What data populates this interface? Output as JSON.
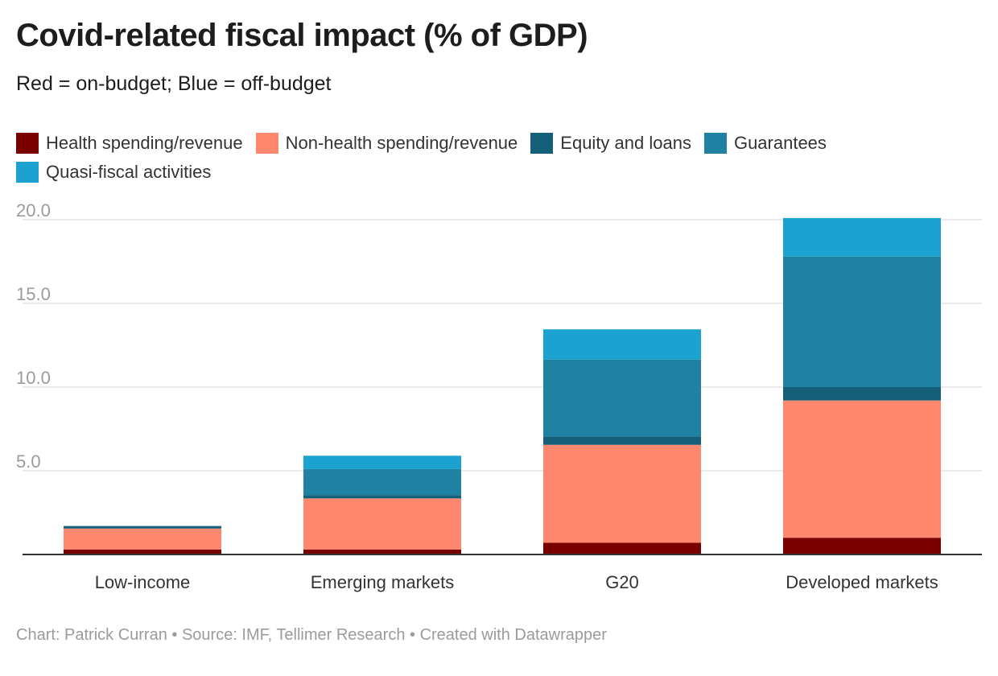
{
  "chart_data": {
    "type": "bar",
    "stacked": true,
    "title": "Covid-related fiscal impact (% of GDP)",
    "subtitle": "Red = on-budget; Blue = off-budget",
    "xlabel": "",
    "ylabel": "",
    "categories": [
      "Low-income",
      "Emerging markets",
      "G20",
      "Developed markets"
    ],
    "series": [
      {
        "name": "Health spending/revenue",
        "color": "#7a0000",
        "values": [
          0.3,
          0.3,
          0.7,
          1.0
        ]
      },
      {
        "name": "Non-health spending/revenue",
        "color": "#ff876e",
        "values": [
          1.25,
          3.05,
          5.85,
          8.2
        ]
      },
      {
        "name": "Equity and loans",
        "color": "#14607a",
        "values": [
          0.15,
          0.2,
          0.5,
          0.8
        ]
      },
      {
        "name": "Guarantees",
        "color": "#1f82a3",
        "values": [
          0.0,
          1.55,
          4.6,
          7.8
        ]
      },
      {
        "name": "Quasi-fiscal activities",
        "color": "#1ba2d0",
        "values": [
          0.0,
          0.8,
          1.8,
          2.3
        ]
      }
    ],
    "ylim": [
      0,
      20
    ],
    "yticks": [
      0,
      5,
      10,
      15,
      20
    ],
    "ytick_labels": [
      "5.0",
      "10.0",
      "15.0",
      "20.0"
    ],
    "grid": true,
    "legend_position": "top-left"
  },
  "footer": "Chart: Patrick Curran • Source: IMF, Tellimer Research • Created with Datawrapper"
}
